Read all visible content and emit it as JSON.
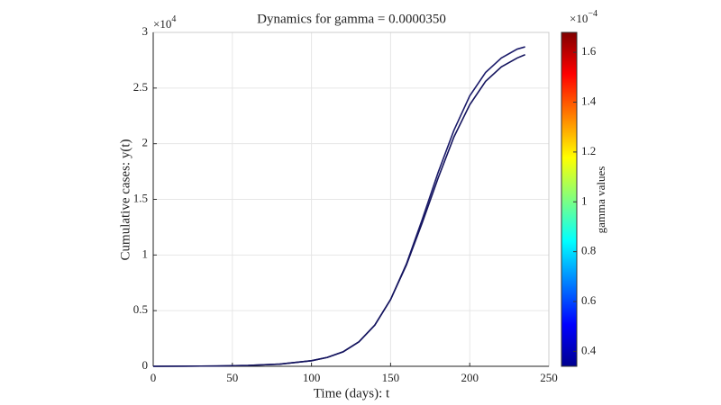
{
  "chart_data": {
    "type": "line",
    "title": "Dynamics for gamma = 0.0000350",
    "x_label": "Time (days): t",
    "y_label": "Cumulative cases: y(t)",
    "y_exponent": {
      "base": "×10",
      "power": "4"
    },
    "x": [
      0,
      20,
      40,
      60,
      80,
      100,
      110,
      120,
      130,
      140,
      150,
      160,
      170,
      180,
      190,
      200,
      210,
      220,
      230,
      235
    ],
    "series": [
      {
        "color": "#1c1c6b",
        "values": [
          0,
          0.001,
          0.003,
          0.008,
          0.02,
          0.05,
          0.08,
          0.13,
          0.22,
          0.37,
          0.6,
          0.92,
          1.32,
          1.74,
          2.12,
          2.43,
          2.64,
          2.77,
          2.85,
          2.87
        ]
      },
      {
        "color": "#14145e",
        "values": [
          0,
          0.001,
          0.003,
          0.008,
          0.02,
          0.05,
          0.08,
          0.13,
          0.22,
          0.37,
          0.6,
          0.91,
          1.29,
          1.69,
          2.06,
          2.35,
          2.56,
          2.69,
          2.77,
          2.8
        ]
      }
    ],
    "xlim": [
      0,
      250
    ],
    "xticks": [
      0,
      50,
      100,
      150,
      200,
      250
    ],
    "ylim": [
      0,
      3
    ],
    "yticks": [
      0,
      0.5,
      1,
      1.5,
      2,
      2.5,
      3
    ],
    "grid": true,
    "colorbar": {
      "label": "gamma values",
      "colormap": "jet",
      "lim": [
        0.34,
        1.68
      ],
      "ticks": [
        0.4,
        0.6,
        0.8,
        1,
        1.2,
        1.4,
        1.6
      ],
      "exponent": {
        "base": "×10",
        "power": "−4"
      }
    }
  }
}
